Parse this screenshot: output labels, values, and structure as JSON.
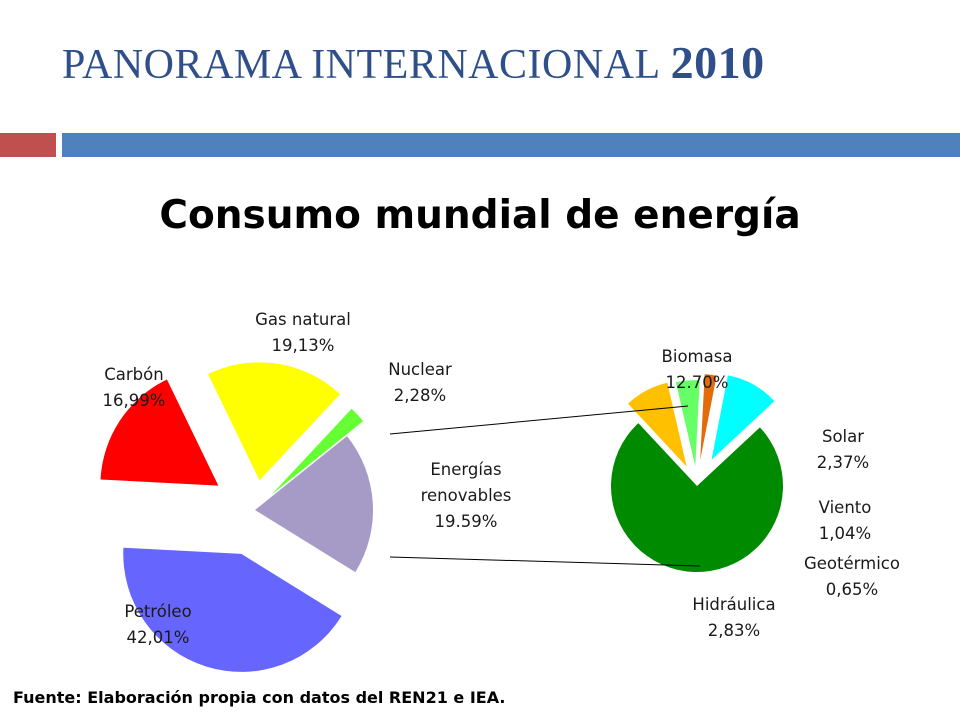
{
  "slide": {
    "title": "PANORAMA INTERNACIONAL",
    "title_year": "2010",
    "source": "Fuente: Elaboración propia con datos del REN21 e IEA."
  },
  "colors": {
    "title": "#2f4f8a",
    "bar_red": "#c0504d",
    "bar_blue": "#4f81bd"
  },
  "chart_data": {
    "type": "pie",
    "title": "Consumo mundial de energía",
    "pies": [
      {
        "name": "main",
        "slices": [
          {
            "label": "Carbón",
            "value_label": "16,99%",
            "value": 16.99,
            "color": "#ff0000"
          },
          {
            "label": "Gas natural",
            "value_label": "19,13%",
            "value": 19.13,
            "color": "#ffff00"
          },
          {
            "label": "Nuclear",
            "value_label": "2,28%",
            "value": 2.28,
            "color": "#66ff33"
          },
          {
            "label": "Energías renovables",
            "label_lines": [
              "Energías",
              "renovables"
            ],
            "value_label": "19.59%",
            "value": 19.59,
            "color": "#a59bc6"
          },
          {
            "label": "Petróleo",
            "value_label": "42,01%",
            "value": 42.01,
            "color": "#6666ff"
          }
        ]
      },
      {
        "name": "renewables-breakdown",
        "slices": [
          {
            "label": "Biomasa",
            "value_label": "12.70%",
            "value": 12.7,
            "color": "#008a00"
          },
          {
            "label": "Solar",
            "value_label": "2,37%",
            "value": 2.37,
            "color": "#ffc000"
          },
          {
            "label": "Viento",
            "value_label": "1,04%",
            "value": 1.04,
            "color": "#66ff66"
          },
          {
            "label": "Geotérmico",
            "value_label": "0,65%",
            "value": 0.65,
            "color": "#e36c0a"
          },
          {
            "label": "Hidráulica",
            "value_label": "2,83%",
            "value": 2.83,
            "color": "#00ffff"
          }
        ]
      }
    ]
  }
}
